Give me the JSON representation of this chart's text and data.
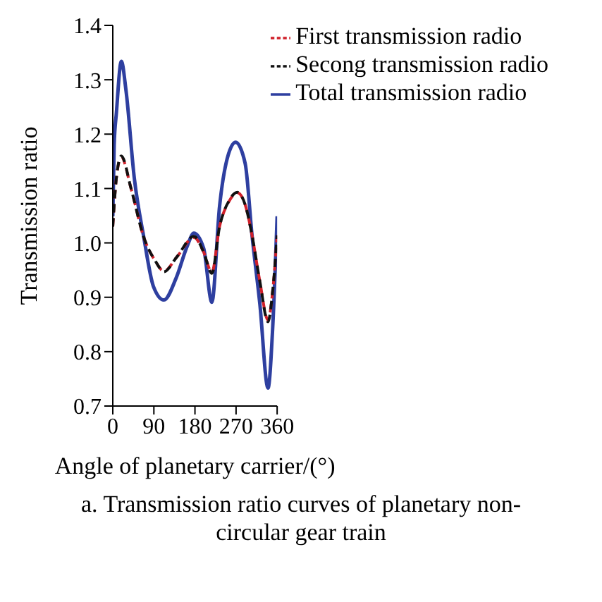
{
  "chart_data": {
    "type": "line",
    "xlabel": "Angle of planetary carrier/(°)",
    "ylabel": "Transmission ratio",
    "annotations": [
      "a. Transmission ratio curves of planetary non-circular gear train"
    ],
    "xlim": [
      0,
      360
    ],
    "xticks": [
      0,
      90,
      180,
      270,
      360
    ],
    "ylim": [
      0.7,
      1.4
    ],
    "yticks": [
      {
        "value": 0.7,
        "label": "0.7"
      },
      {
        "value": 0.8,
        "label": "0.8"
      },
      {
        "value": 0.9,
        "label": "0.9"
      },
      {
        "value": 1,
        "label": "1.0"
      },
      {
        "value": 1.1,
        "label": "1.1"
      },
      {
        "value": 1.2,
        "label": "1.2"
      },
      {
        "value": 1.3,
        "label": "1.3"
      },
      {
        "value": 1.4,
        "label": "1.4"
      }
    ],
    "grid": false,
    "legend": "top right",
    "marker": "none",
    "series": [
      {
        "name": "Total transmission radio",
        "color": "#2e3fa0",
        "line_style": "solid",
        "x": [
          0,
          3,
          8,
          18.7,
          29,
          47,
          68,
          89,
          112,
          139,
          163,
          177.5,
          199,
          217,
          234,
          248,
          269,
          290,
          305,
          322,
          340,
          350,
          360
        ],
        "values": [
          1.049,
          1.18,
          1.24,
          1.334,
          1.28,
          1.12,
          1.01,
          0.92,
          0.895,
          0.936,
          0.994,
          1.018,
          0.99,
          0.891,
          1.068,
          1.146,
          1.185,
          1.146,
          1.014,
          0.889,
          0.733,
          0.84,
          1.049
        ]
      },
      {
        "name": "First transmission radio",
        "color": "#d0202a",
        "line_style": "dashed",
        "x": [
          0,
          8,
          18.7,
          40,
          68,
          93,
          112,
          141,
          177.5,
          199,
          217,
          234,
          255,
          273,
          290,
          305,
          322,
          340,
          350,
          360
        ],
        "values": [
          1.03,
          1.12,
          1.158,
          1.1,
          1.01,
          0.967,
          0.948,
          0.975,
          1.01,
          0.983,
          0.946,
          1.03,
          1.077,
          1.092,
          1.07,
          1.014,
          0.93,
          0.858,
          0.91,
          1.014
        ]
      },
      {
        "name": "Secong transmission radio",
        "color": "#111111",
        "line_style": "dashed",
        "x": [
          0,
          8,
          18.7,
          40,
          68,
          93,
          112,
          141,
          177.5,
          199,
          217,
          234,
          255,
          273,
          290,
          305,
          322,
          340,
          350,
          360
        ],
        "values": [
          1.03,
          1.12,
          1.16,
          1.1,
          1.01,
          0.967,
          0.947,
          0.975,
          1.012,
          0.983,
          0.944,
          1.03,
          1.078,
          1.093,
          1.07,
          1.014,
          0.93,
          0.855,
          0.91,
          1.014
        ]
      }
    ]
  }
}
